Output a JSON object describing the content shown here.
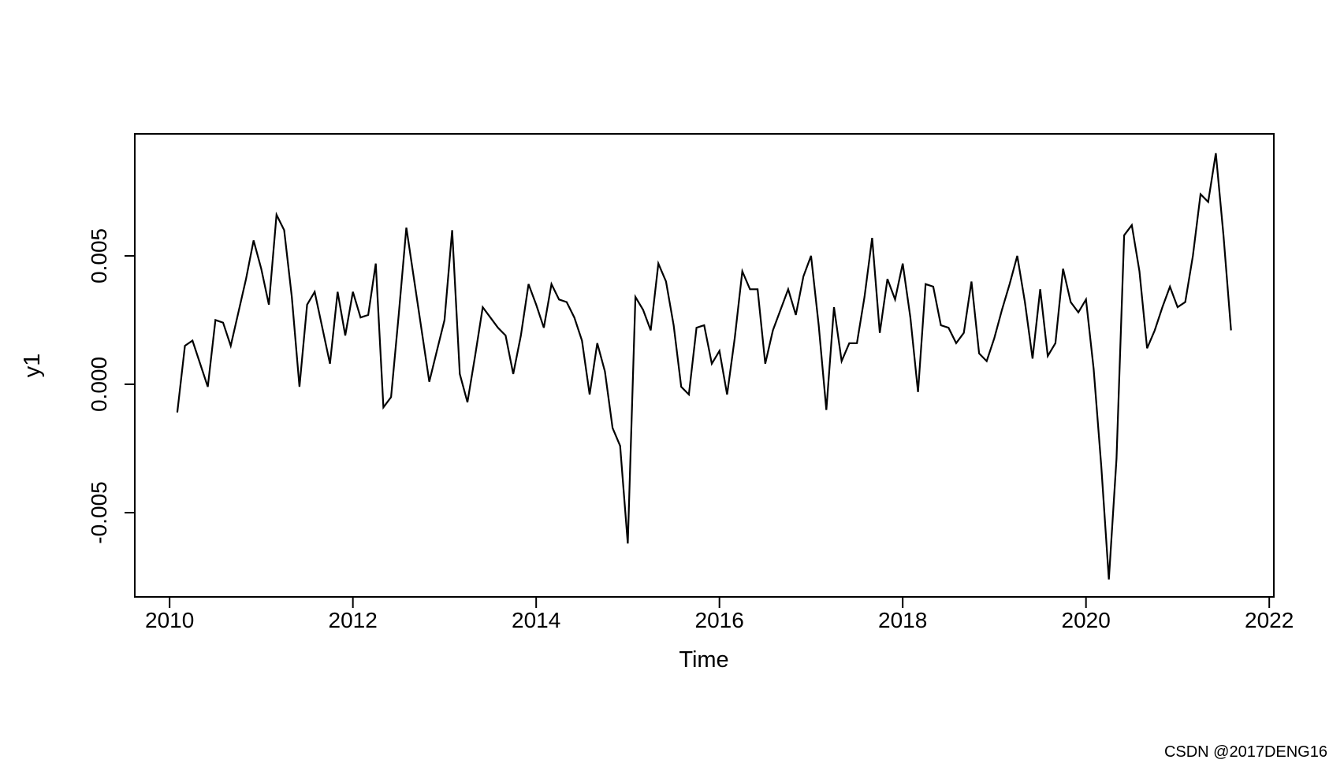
{
  "watermark": {
    "text": "CSDN @2017DENG16",
    "color": "#b9b9b9"
  },
  "chart_data": {
    "type": "line",
    "title": "",
    "xlabel": "Time",
    "ylabel": "y1",
    "line_color": "#000000",
    "axis_color": "#000000",
    "background": "#ffffff",
    "grid": false,
    "legend": null,
    "xlim": [
      2009.62,
      2022.05
    ],
    "ylim": [
      -0.00828,
      0.00975
    ],
    "x_ticks": [
      {
        "value": 2010,
        "label": "2010"
      },
      {
        "value": 2012,
        "label": "2012"
      },
      {
        "value": 2014,
        "label": "2014"
      },
      {
        "value": 2016,
        "label": "2016"
      },
      {
        "value": 2018,
        "label": "2018"
      },
      {
        "value": 2020,
        "label": "2020"
      },
      {
        "value": 2022,
        "label": "2022"
      }
    ],
    "y_ticks": [
      {
        "value": 0.005,
        "label": "0.005"
      },
      {
        "value": 0.0,
        "label": "0.000"
      },
      {
        "value": -0.005,
        "label": "-0.005"
      }
    ],
    "series": {
      "name": "y1",
      "start_year": 2010,
      "start_month": 2,
      "frequency": 12,
      "values": [
        -0.0011,
        0.0015,
        0.0017,
        0.0008,
        -0.0001,
        0.0025,
        0.0024,
        0.0015,
        0.0028,
        0.0041,
        0.0056,
        0.0045,
        0.0031,
        0.0066,
        0.006,
        0.0034,
        -0.0001,
        0.0031,
        0.0036,
        0.0022,
        0.0008,
        0.0036,
        0.0019,
        0.0036,
        0.0026,
        0.0027,
        0.0047,
        -0.0009,
        -0.0005,
        0.0027,
        0.0061,
        0.0041,
        0.0021,
        0.0001,
        0.0013,
        0.0025,
        0.006,
        0.0004,
        -0.0007,
        0.0011,
        0.003,
        0.0026,
        0.0022,
        0.0019,
        0.0004,
        0.0019,
        0.0039,
        0.0031,
        0.0022,
        0.0039,
        0.0033,
        0.0032,
        0.0026,
        0.0017,
        -0.0004,
        0.0016,
        0.0005,
        -0.0017,
        -0.0024,
        -0.0062,
        0.0034,
        0.0029,
        0.0021,
        0.0047,
        0.004,
        0.0023,
        -0.0001,
        -0.0004,
        0.0022,
        0.0023,
        0.0008,
        0.0013,
        -0.0004,
        0.0018,
        0.0044,
        0.0037,
        0.0037,
        0.0008,
        0.0021,
        0.0029,
        0.0037,
        0.0027,
        0.0042,
        0.005,
        0.0023,
        -0.001,
        0.003,
        0.0009,
        0.0016,
        0.0016,
        0.0034,
        0.0057,
        0.002,
        0.0041,
        0.0033,
        0.0047,
        0.0026,
        -0.0003,
        0.0039,
        0.0038,
        0.0023,
        0.0022,
        0.0016,
        0.002,
        0.004,
        0.0012,
        0.0009,
        0.0018,
        0.0029,
        0.0039,
        0.005,
        0.0032,
        0.001,
        0.0037,
        0.0011,
        0.0016,
        0.0045,
        0.0032,
        0.0028,
        0.0033,
        0.0006,
        -0.0032,
        -0.0076,
        -0.0029,
        0.0058,
        0.0062,
        0.0044,
        0.0014,
        0.0021,
        0.003,
        0.0038,
        0.003,
        0.0032,
        0.005,
        0.0074,
        0.0071,
        0.009,
        0.0058,
        0.0021
      ]
    }
  }
}
